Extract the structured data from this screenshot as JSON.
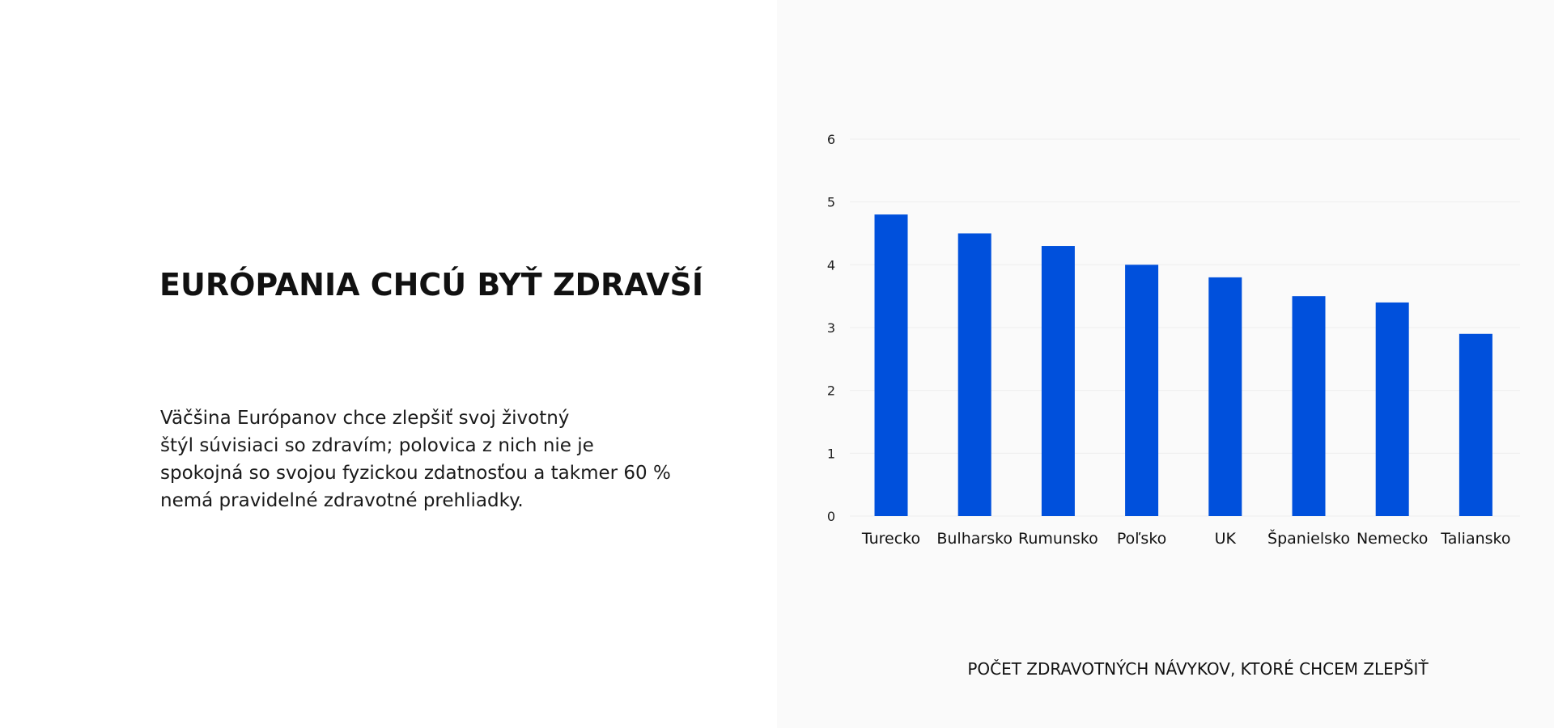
{
  "left": {
    "headline": "EURÓPANIA CHCÚ BYŤ ZDRAVŠÍ",
    "paragraph_lines": [
      "Väčšina Európanov chce zlepšiť svoj životný",
      "štýl súvisiaci so zdravím; polovica z nich nie je",
      "spokojná so svojou fyzickou zdatnosťou a takmer 60 %",
      "nemá pravidelné zdravotné prehliadky."
    ]
  },
  "colors": {
    "bar": "#0050dc",
    "right_panel_bg": "#fafafa",
    "grid": "#eeeeee"
  },
  "chart_data": {
    "type": "bar",
    "title": "",
    "xlabel": "POČET ZDRAVOTNÝCH NÁVYKOV, KTORÉ CHCEM ZLEPŠIŤ",
    "ylabel": "",
    "categories": [
      "Turecko",
      "Bulharsko",
      "Rumunsko",
      "Poľsko",
      "UK",
      "Španielsko",
      "Nemecko",
      "Taliansko"
    ],
    "values": [
      4.8,
      4.5,
      4.3,
      4.0,
      3.8,
      3.5,
      3.4,
      2.9
    ],
    "ylim": [
      0,
      6
    ],
    "yticks": [
      0,
      1,
      2,
      3,
      4,
      5,
      6
    ],
    "grid": true,
    "legend": "none"
  }
}
